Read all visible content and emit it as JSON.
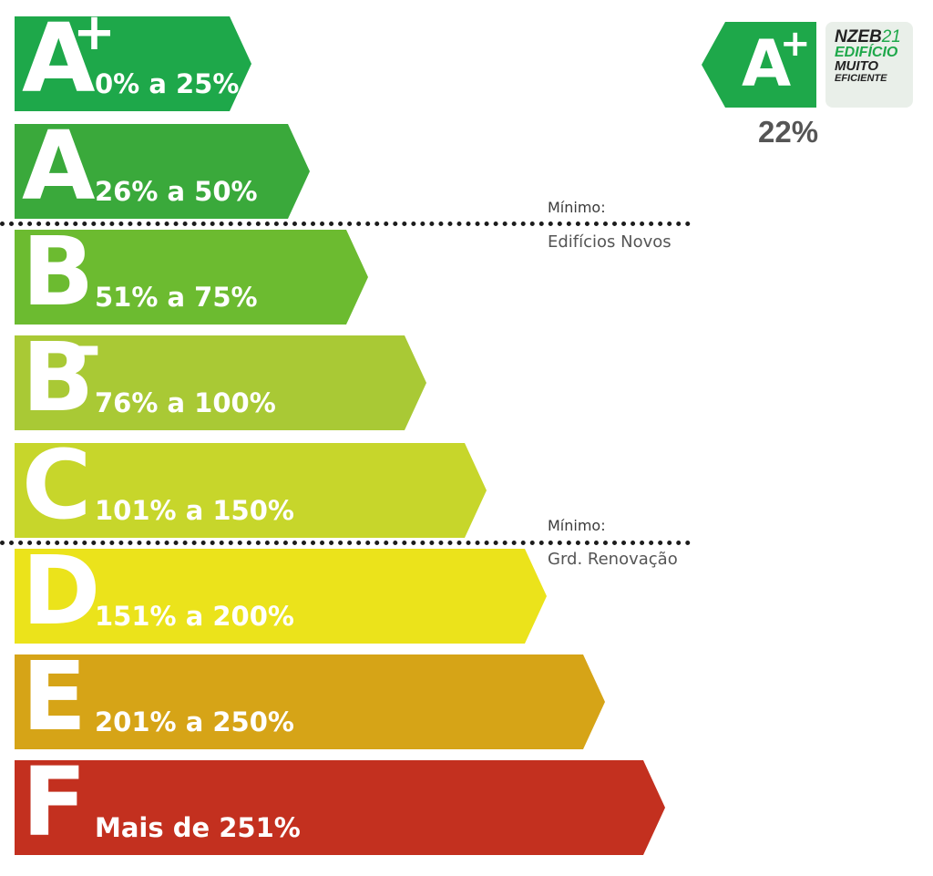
{
  "scale": [
    {
      "letter": "A",
      "sup": "+",
      "range": "0% a 25%",
      "color": "#1ea84a"
    },
    {
      "letter": "A",
      "sup": "",
      "range": "26% a 50%",
      "color": "#3aa93b"
    },
    {
      "letter": "B",
      "sup": "",
      "range": "51% a 75%",
      "color": "#6cbb30"
    },
    {
      "letter": "B",
      "sup": "-",
      "range": "76% a 100%",
      "color": "#a9c935"
    },
    {
      "letter": "C",
      "sup": "",
      "range": "101% a 150%",
      "color": "#c7d62b"
    },
    {
      "letter": "D",
      "sup": "",
      "range": "151% a 200%",
      "color": "#ebe31b"
    },
    {
      "letter": "E",
      "sup": "",
      "range": "201% a 250%",
      "color": "#d6a417"
    },
    {
      "letter": "F",
      "sup": "",
      "range": "Mais de 251%",
      "color": "#c3301f"
    }
  ],
  "thresholds": [
    {
      "label": "Mínimo:",
      "sublabel": "Edifícios Novos"
    },
    {
      "label": "Mínimo:",
      "sublabel": "Grd. Renovação"
    }
  ],
  "result": {
    "letter": "A",
    "sup": "+",
    "value": "22%",
    "color": "#1ea84a"
  },
  "badge": {
    "line1_bold": "NZEB",
    "line1_num": "21",
    "line2": "EDIFÍCIO",
    "line3": "MUITO",
    "line4": "EFICIENTE"
  }
}
